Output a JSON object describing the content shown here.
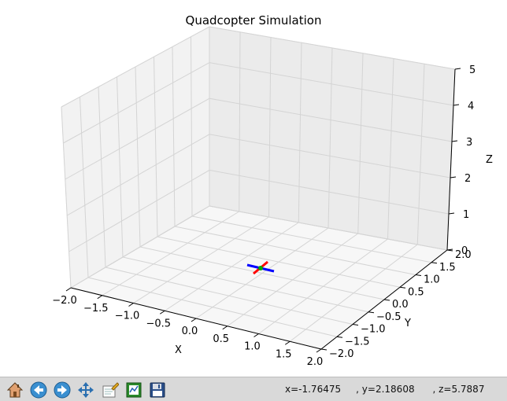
{
  "title": "Quadcopter Simulation",
  "axes": {
    "x": {
      "label": "X",
      "ticks": [
        "−2.0",
        "−1.5",
        "−1.0",
        "−0.5",
        "0.0",
        "0.5",
        "1.0",
        "1.5",
        "2.0"
      ],
      "range": [
        -2.0,
        2.0
      ]
    },
    "y": {
      "label": "Y",
      "ticks": [
        "−2.0",
        "−1.5",
        "−1.0",
        "−0.5",
        "0.0",
        "0.5",
        "1.0",
        "1.5",
        "2.0"
      ],
      "range": [
        -2.0,
        2.0
      ]
    },
    "z": {
      "label": "Z",
      "ticks": [
        "0",
        "1",
        "2",
        "3",
        "4",
        "5"
      ],
      "range": [
        0,
        5
      ]
    },
    "grid": true
  },
  "quadcopter": {
    "position": {
      "x": 0.0,
      "y": 0.0,
      "z": 0.0
    },
    "arm_colors": {
      "arm1": "#ff0000",
      "arm2": "#0000ff",
      "center": "#00aa00"
    }
  },
  "toolbar": {
    "buttons": [
      {
        "name": "home-button",
        "icon": "home-icon"
      },
      {
        "name": "back-button",
        "icon": "arrow-left-icon"
      },
      {
        "name": "forward-button",
        "icon": "arrow-right-icon"
      },
      {
        "name": "pan-button",
        "icon": "move-icon"
      },
      {
        "name": "zoom-button",
        "icon": "zoom-rect-icon"
      },
      {
        "name": "subplots-button",
        "icon": "subplots-icon"
      },
      {
        "name": "save-button",
        "icon": "floppy-icon"
      }
    ],
    "coordinates": "x=-1.76475     , y=2.18608      , z=5.7887"
  }
}
